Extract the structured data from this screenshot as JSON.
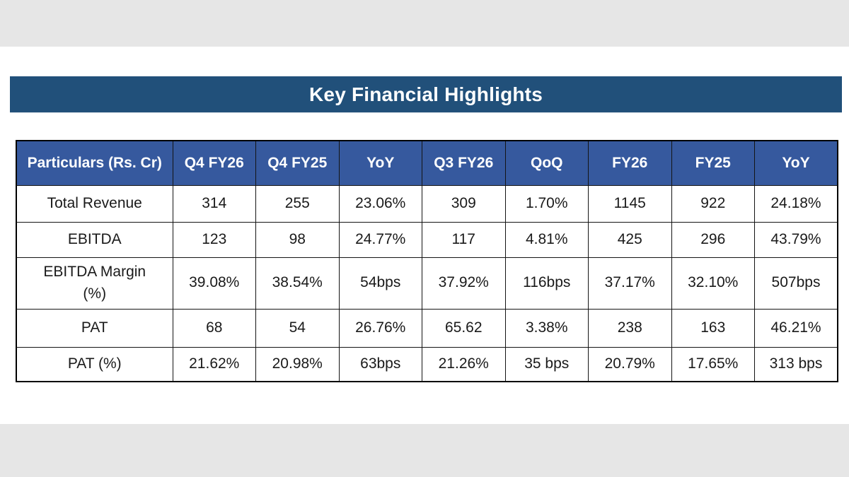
{
  "title": {
    "text": "Key Financial Highlights"
  },
  "colors": {
    "title_bar_bg": "#21507a",
    "title_text": "#ffffff",
    "table_header_bg": "#36599e",
    "table_header_text": "#ffffff",
    "table_body_text": "#1a1a1a",
    "table_border": "#141414",
    "page_letterbox": "#e6e6e6",
    "canvas_bg": "#ffffff"
  },
  "chart_data": {
    "type": "table",
    "title": "Key Financial Highlights",
    "unit_note": "Rs. Cr",
    "columns": [
      "Particulars (Rs. Cr)",
      "Q4 FY26",
      "Q4 FY25",
      "YoY",
      "Q3 FY26",
      "QoQ",
      "FY26",
      "FY25",
      "YoY"
    ],
    "rows": [
      [
        "Total Revenue",
        "314",
        "255",
        "23.06%",
        "309",
        "1.70%",
        "1145",
        "922",
        "24.18%"
      ],
      [
        "EBITDA",
        "123",
        "98",
        "24.77%",
        "117",
        "4.81%",
        "425",
        "296",
        "43.79%"
      ],
      [
        "EBITDA Margin (%)",
        "39.08%",
        "38.54%",
        "54bps",
        "37.92%",
        "116bps",
        "37.17%",
        "32.10%",
        "507bps"
      ],
      [
        "PAT",
        "68",
        "54",
        "26.76%",
        "65.62",
        "3.38%",
        "238",
        "163",
        "46.21%"
      ],
      [
        "PAT (%)",
        "21.62%",
        "20.98%",
        "63bps",
        "21.26%",
        "35 bps",
        "20.79%",
        "17.65%",
        "313 bps"
      ]
    ]
  }
}
